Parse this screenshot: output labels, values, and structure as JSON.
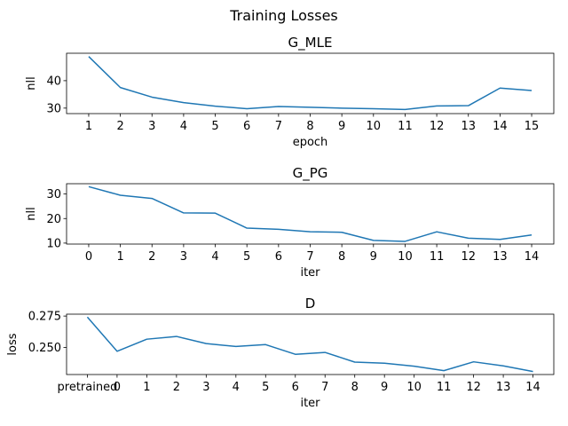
{
  "figure": {
    "suptitle": "Training Losses",
    "line_color": "#1f77b4"
  },
  "chart_data": [
    {
      "type": "line",
      "title": "G_MLE",
      "xlabel": "epoch",
      "ylabel": "nll",
      "x": [
        1,
        2,
        3,
        4,
        5,
        6,
        7,
        8,
        9,
        10,
        11,
        12,
        13,
        14,
        15
      ],
      "xtick_labels": [
        "1",
        "2",
        "3",
        "4",
        "5",
        "6",
        "7",
        "8",
        "9",
        "10",
        "11",
        "12",
        "13",
        "14",
        "15"
      ],
      "values": [
        48.8,
        37.5,
        34.0,
        32.0,
        30.7,
        29.8,
        30.6,
        30.3,
        30.0,
        29.8,
        29.5,
        30.8,
        30.9,
        37.3,
        36.4
      ],
      "ylim": [
        28.0,
        50.0
      ],
      "yticks": [
        30,
        40
      ],
      "grid": false
    },
    {
      "type": "line",
      "title": "G_PG",
      "xlabel": "iter",
      "ylabel": "nll",
      "x": [
        0,
        1,
        2,
        3,
        4,
        5,
        6,
        7,
        8,
        9,
        10,
        11,
        12,
        13,
        14
      ],
      "xtick_labels": [
        "0",
        "1",
        "2",
        "3",
        "4",
        "5",
        "6",
        "7",
        "8",
        "9",
        "10",
        "11",
        "12",
        "13",
        "14"
      ],
      "values": [
        33.0,
        29.5,
        28.2,
        22.3,
        22.2,
        16.1,
        15.6,
        14.6,
        14.4,
        11.1,
        10.7,
        14.6,
        12.0,
        11.5,
        13.3
      ],
      "ylim": [
        9.6,
        34.2
      ],
      "yticks": [
        10,
        20,
        30
      ],
      "grid": false
    },
    {
      "type": "line",
      "title": "D",
      "xlabel": "iter",
      "ylabel": "loss",
      "x": [
        "pretrained",
        0,
        1,
        2,
        3,
        4,
        5,
        6,
        7,
        8,
        9,
        10,
        11,
        12,
        13,
        14
      ],
      "xtick_labels": [
        "pretrained",
        "0",
        "1",
        "2",
        "3",
        "4",
        "5",
        "6",
        "7",
        "8",
        "9",
        "10",
        "11",
        "12",
        "13",
        "14"
      ],
      "values": [
        0.2742,
        0.247,
        0.2566,
        0.2588,
        0.2531,
        0.2508,
        0.2523,
        0.2446,
        0.2461,
        0.2384,
        0.2375,
        0.2351,
        0.2316,
        0.2386,
        0.2354,
        0.2309
      ],
      "ylim": [
        0.2285,
        0.2765
      ],
      "yticks": [
        0.25,
        0.275
      ],
      "ytick_labels": [
        "0.250",
        "0.275"
      ],
      "grid": false
    }
  ]
}
